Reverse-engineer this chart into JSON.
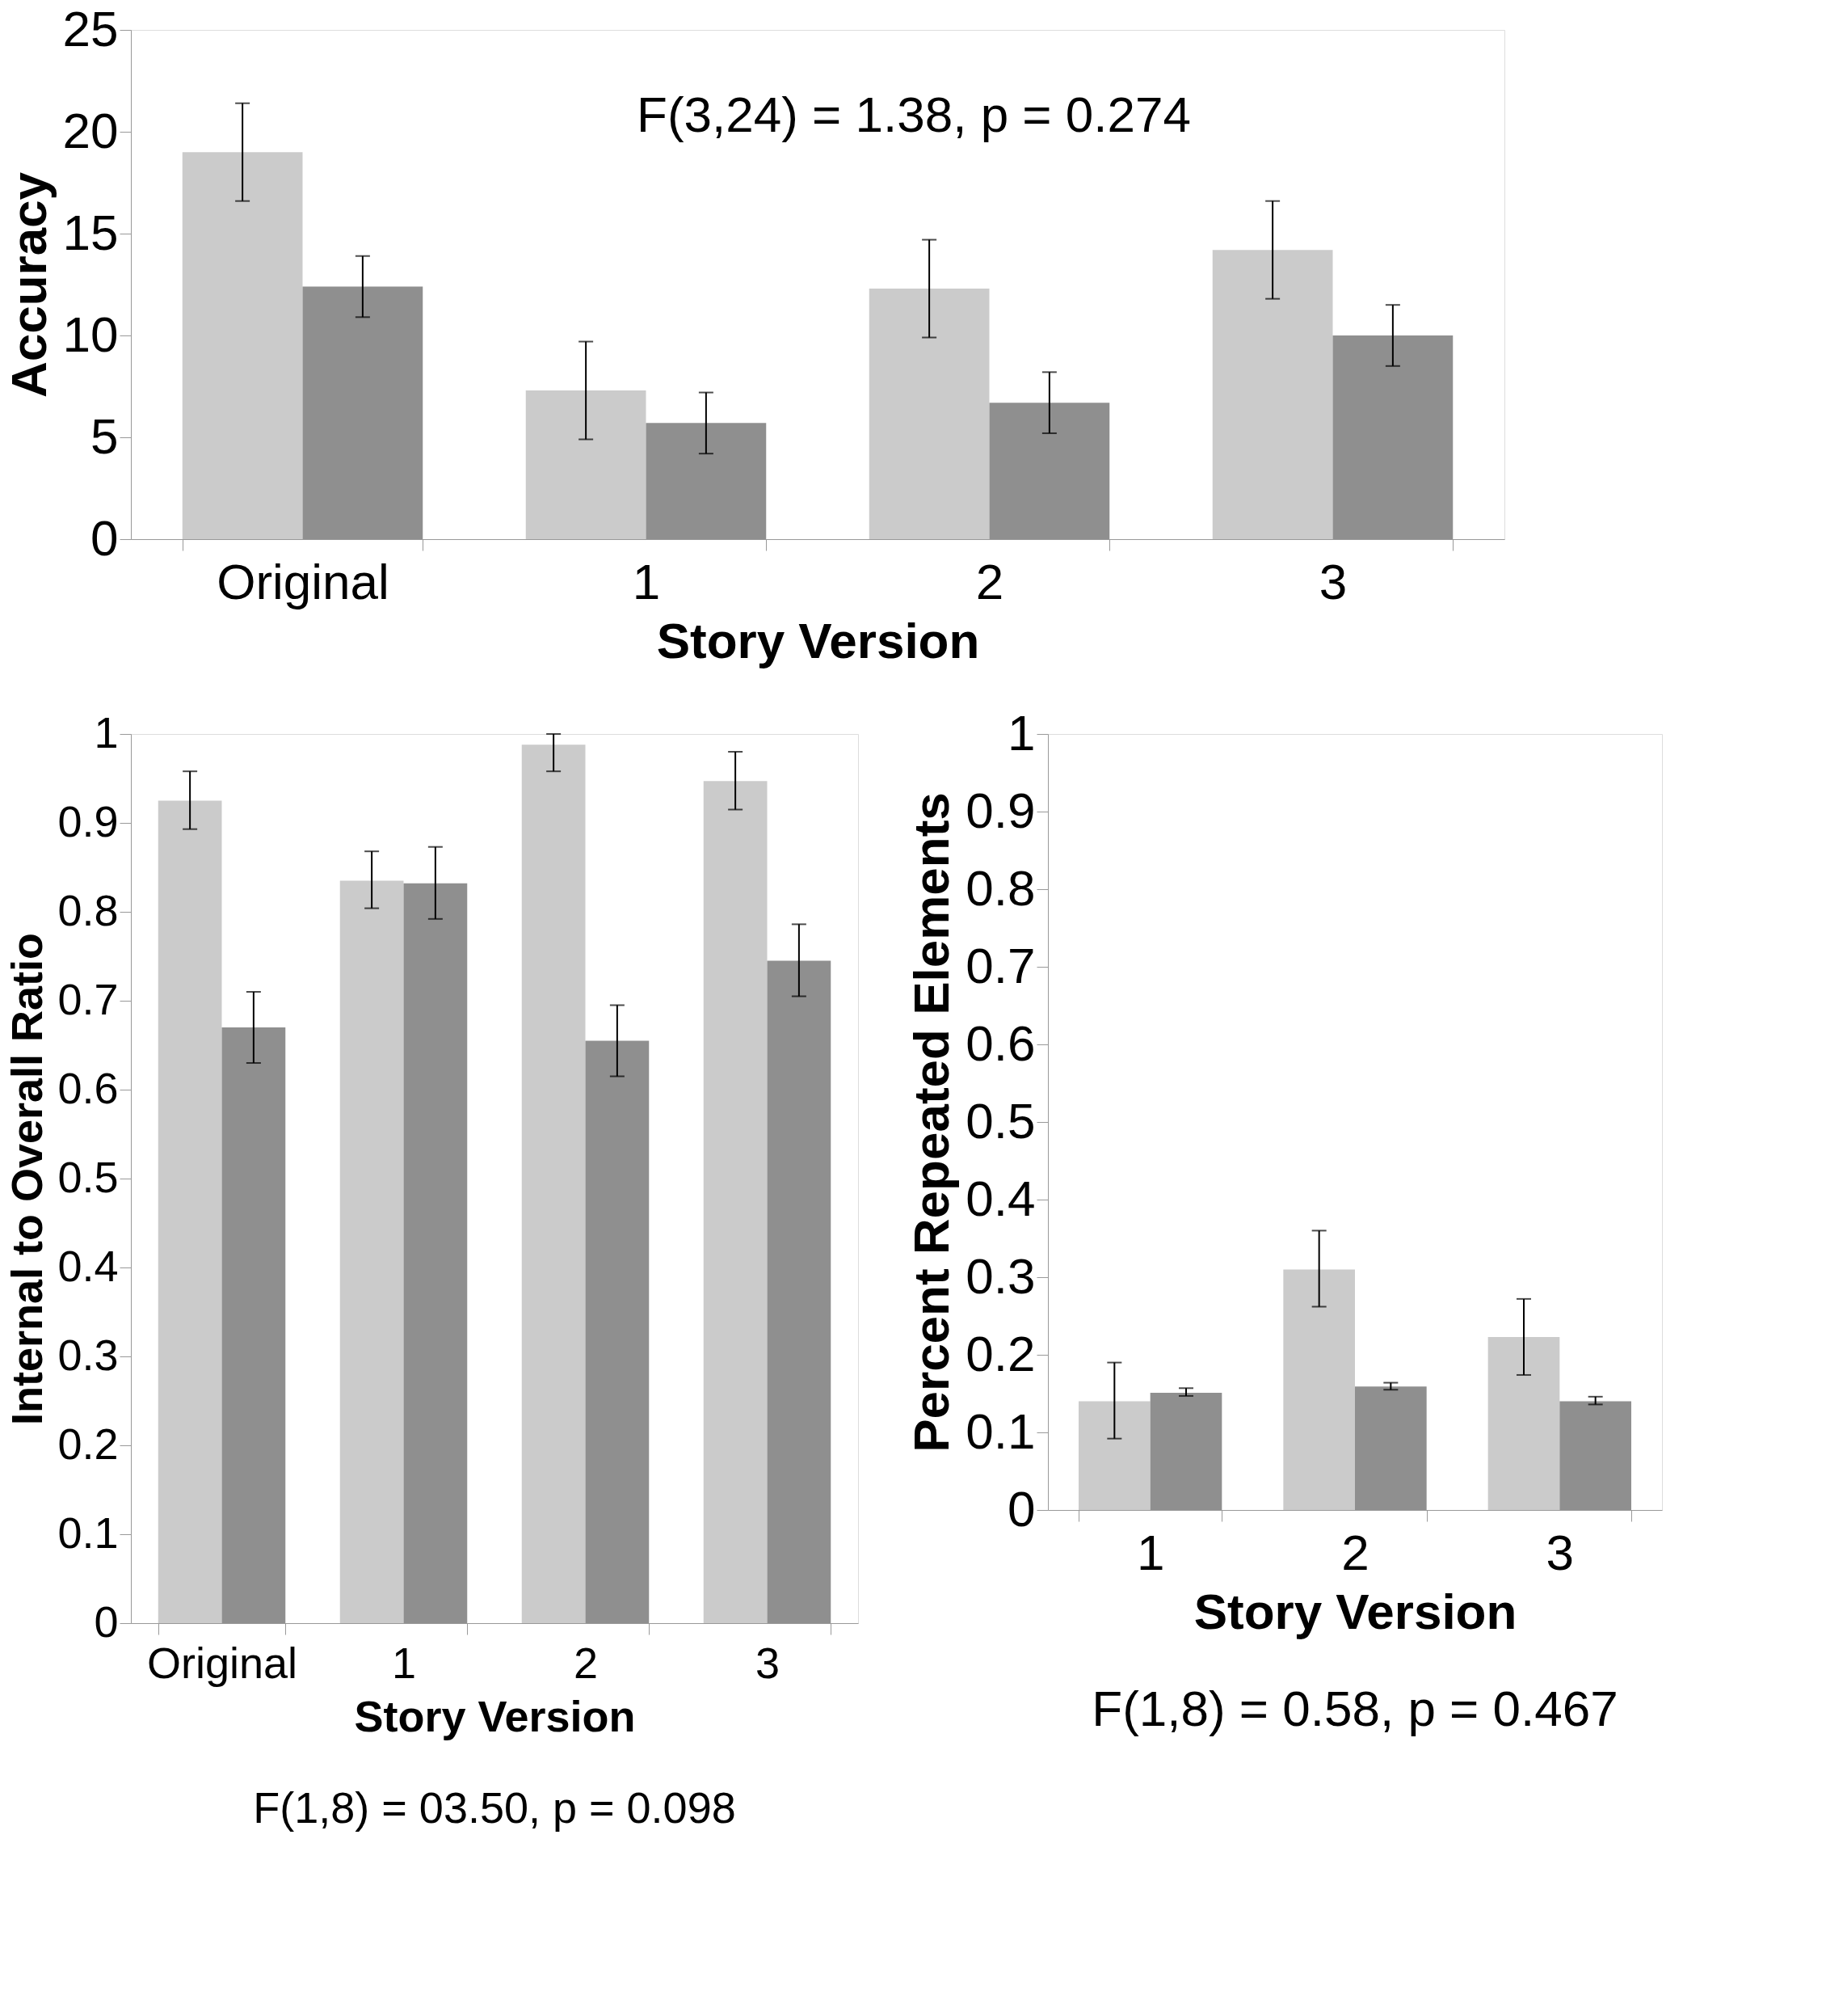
{
  "chart_data": [
    {
      "type": "bar",
      "xlabel": "Story Version",
      "ylabel": "Accuracy",
      "categories": [
        "Original",
        "1",
        "2",
        "3"
      ],
      "ylim": [
        0,
        25
      ],
      "yticks": [
        0,
        5,
        10,
        15,
        20,
        25
      ],
      "grid": false,
      "series": [
        {
          "color": "#cbcbcb",
          "values": [
            19.0,
            7.3,
            12.3,
            14.2
          ],
          "errors": [
            [
              16.6,
              21.4
            ],
            [
              4.9,
              9.7
            ],
            [
              9.9,
              14.7
            ],
            [
              11.8,
              16.6
            ]
          ]
        },
        {
          "color": "#8f8f8f",
          "values": [
            12.4,
            5.7,
            6.7,
            10.0
          ],
          "errors": [
            [
              10.9,
              13.9
            ],
            [
              4.2,
              7.2
            ],
            [
              5.2,
              8.2
            ],
            [
              8.5,
              11.5
            ]
          ]
        }
      ],
      "annotations": [
        "F(3,24) = 1.38, p = 0.274"
      ]
    },
    {
      "type": "bar",
      "xlabel": "Story Version",
      "ylabel": "Internal to Overall Ratio",
      "categories": [
        "Original",
        "1",
        "2",
        "3"
      ],
      "ylim": [
        0,
        1
      ],
      "yticks": [
        0,
        0.1,
        0.2,
        0.3,
        0.4,
        0.5,
        0.6,
        0.7,
        0.8,
        0.9,
        1
      ],
      "grid": false,
      "series": [
        {
          "color": "#cbcbcb",
          "values": [
            0.925,
            0.835,
            0.988,
            0.947
          ],
          "errors": [
            [
              0.893,
              0.958
            ],
            [
              0.804,
              0.868
            ],
            [
              0.958,
              1.0
            ],
            [
              0.915,
              0.98
            ]
          ]
        },
        {
          "color": "#8f8f8f",
          "values": [
            0.67,
            0.832,
            0.655,
            0.745
          ],
          "errors": [
            [
              0.63,
              0.71
            ],
            [
              0.792,
              0.873
            ],
            [
              0.615,
              0.695
            ],
            [
              0.705,
              0.786
            ]
          ]
        }
      ],
      "annotations": [
        "F(1,8) = 03.50, p = 0.098"
      ]
    },
    {
      "type": "bar",
      "xlabel": "Story Version",
      "ylabel": "Percent Repeated Elements",
      "categories": [
        "1",
        "2",
        "3"
      ],
      "ylim": [
        0,
        1
      ],
      "yticks": [
        0,
        0.1,
        0.2,
        0.3,
        0.4,
        0.5,
        0.6,
        0.7,
        0.8,
        0.9,
        1
      ],
      "grid": false,
      "series": [
        {
          "color": "#cbcbcb",
          "values": [
            0.14,
            0.31,
            0.223
          ],
          "errors": [
            [
              0.092,
              0.19
            ],
            [
              0.262,
              0.36
            ],
            [
              0.174,
              0.272
            ]
          ]
        },
        {
          "color": "#8f8f8f",
          "values": [
            0.151,
            0.159,
            0.14
          ],
          "errors": [
            [
              0.147,
              0.157
            ],
            [
              0.155,
              0.164
            ],
            [
              0.136,
              0.146
            ]
          ]
        }
      ],
      "annotations": [
        "F(1,8) = 0.58, p = 0.467"
      ]
    }
  ]
}
